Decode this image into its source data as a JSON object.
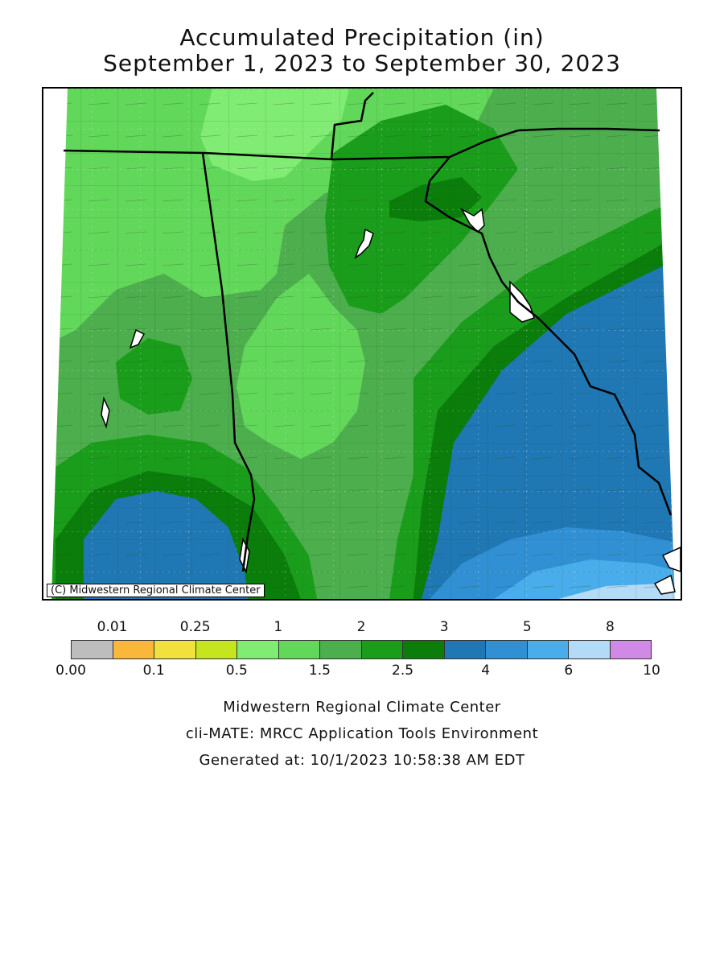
{
  "title": {
    "line1": "Accumulated Precipitation (in)",
    "line2": "September 1, 2023 to September 30, 2023"
  },
  "map": {
    "copyright": "(C) Midwestern Regional Climate Center"
  },
  "legend": {
    "upper_labels": [
      "0.01",
      "0.25",
      "1",
      "2",
      "3",
      "5",
      "8"
    ],
    "lower_labels": [
      "0.00",
      "0.1",
      "0.5",
      "1.5",
      "2.5",
      "4",
      "6",
      "10"
    ],
    "colors": [
      "#bdbdbd",
      "#f9b83a",
      "#f2e03c",
      "#c5e61e",
      "#80ec73",
      "#62d85a",
      "#4cae4c",
      "#1a9d1a",
      "#0a7d0a",
      "#1f77b4",
      "#3190d3",
      "#48adea",
      "#b3daf7",
      "#d08ae6"
    ]
  },
  "footer": {
    "line1": "Midwestern Regional Climate Center",
    "line2": "cli-MATE: MRCC Application Tools Environment",
    "line3": "Generated at: 10/1/2023 10:58:38 AM EDT"
  }
}
